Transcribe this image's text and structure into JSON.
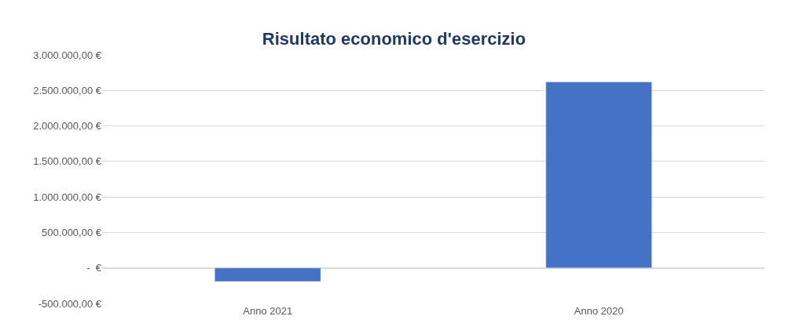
{
  "chart_data": {
    "type": "bar",
    "title": "Risultato economico d'esercizio",
    "categories": [
      "Anno 2021",
      "Anno 2020"
    ],
    "values": [
      -190000,
      2620000
    ],
    "color": "#4472c4",
    "ylim": [
      -500000,
      3000000
    ],
    "yticks": [
      {
        "value": -500000,
        "label": "-500.000,00 €"
      },
      {
        "value": 0,
        "label": "-  €"
      },
      {
        "value": 500000,
        "label": "500.000,00 €"
      },
      {
        "value": 1000000,
        "label": "1.000.000,00 €"
      },
      {
        "value": 1500000,
        "label": "1.500.000,00 €"
      },
      {
        "value": 2000000,
        "label": "2.000.000,00 €"
      },
      {
        "value": 2500000,
        "label": "2.500.000,00 €"
      },
      {
        "value": 3000000,
        "label": "3.000.000,00 €"
      }
    ],
    "grid": "y"
  }
}
